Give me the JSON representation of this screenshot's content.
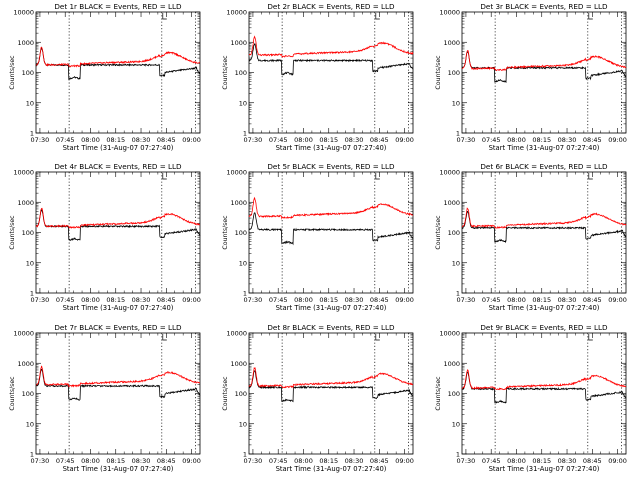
{
  "figure": {
    "background": "#ffffff",
    "events_color": "#000000",
    "lld_color": "#ff0000"
  },
  "chart_data": [
    {
      "type": "line",
      "title": "Det 1r BLACK = Events, RED = LLD",
      "xlabel": "Start Time (31-Aug-07 07:27:40)",
      "ylabel": "Counts/sec",
      "y_scale": "log",
      "ylim": [
        1,
        10000
      ],
      "x_ticks": [
        "07:30",
        "07:45",
        "08:00",
        "08:15",
        "08:30",
        "08:45",
        "09:00"
      ],
      "y_ticks": [
        "1",
        "10",
        "100",
        "1000",
        "10000"
      ],
      "x_range_min": [
        -2.33,
        95
      ],
      "vlines_min": [
        17.33,
        72.33,
        92.33
      ],
      "series": [
        {
          "color": "#000000",
          "profile": "black",
          "level": 1.0
        },
        {
          "color": "#ff0000",
          "profile": "red",
          "level": 1.0
        }
      ]
    },
    {
      "type": "line",
      "title": "Det 2r BLACK = Events, RED = LLD",
      "xlabel": "Start Time (31-Aug-07 07:27:40)",
      "ylabel": "Counts/sec",
      "y_scale": "log",
      "ylim": [
        1,
        10000
      ],
      "x_ticks": [
        "07:30",
        "07:45",
        "08:00",
        "08:15",
        "08:30",
        "08:45",
        "09:00"
      ],
      "y_ticks": [
        "1",
        "10",
        "100",
        "1000",
        "10000"
      ],
      "x_range_min": [
        -2.33,
        95
      ],
      "vlines_min": [
        17.33,
        72.33,
        92.33
      ],
      "series": [
        {
          "color": "#000000",
          "profile": "black",
          "level": 1.4
        },
        {
          "color": "#ff0000",
          "profile": "red",
          "level": 2.1
        }
      ]
    },
    {
      "type": "line",
      "title": "Det 3r BLACK = Events, RED = LLD",
      "xlabel": "Start Time (31-Aug-07 07:27:40)",
      "ylabel": "Counts/sec",
      "y_scale": "log",
      "ylim": [
        1,
        10000
      ],
      "x_ticks": [
        "07:30",
        "07:45",
        "08:00",
        "08:15",
        "08:30",
        "08:45",
        "09:00"
      ],
      "y_ticks": [
        "1",
        "10",
        "100",
        "1000",
        "10000"
      ],
      "x_range_min": [
        -2.33,
        95
      ],
      "vlines_min": [
        17.33,
        72.33,
        92.33
      ],
      "series": [
        {
          "color": "#000000",
          "profile": "black",
          "level": 0.8
        },
        {
          "color": "#ff0000",
          "profile": "red",
          "level": 0.75
        }
      ]
    },
    {
      "type": "line",
      "title": "Det 4r BLACK = Events, RED = LLD",
      "xlabel": "Start Time (31-Aug-07 07:27:40)",
      "ylabel": "Counts/sec",
      "y_scale": "log",
      "ylim": [
        1,
        10000
      ],
      "x_ticks": [
        "07:30",
        "07:45",
        "08:00",
        "08:15",
        "08:30",
        "08:45",
        "09:00"
      ],
      "y_ticks": [
        "1",
        "10",
        "100",
        "1000",
        "10000"
      ],
      "x_range_min": [
        -2.33,
        95
      ],
      "vlines_min": [
        17.33,
        72.33,
        92.33
      ],
      "series": [
        {
          "color": "#000000",
          "profile": "black",
          "level": 0.9
        },
        {
          "color": "#ff0000",
          "profile": "red",
          "level": 0.9
        }
      ]
    },
    {
      "type": "line",
      "title": "Det 5r BLACK = Events, RED = LLD",
      "xlabel": "Start Time (31-Aug-07 07:27:40)",
      "ylabel": "Counts/sec",
      "y_scale": "log",
      "ylim": [
        1,
        10000
      ],
      "x_ticks": [
        "07:30",
        "07:45",
        "08:00",
        "08:15",
        "08:30",
        "08:45",
        "09:00"
      ],
      "y_ticks": [
        "1",
        "10",
        "100",
        "1000",
        "10000"
      ],
      "x_range_min": [
        -2.33,
        95
      ],
      "vlines_min": [
        17.33,
        72.33,
        92.33
      ],
      "series": [
        {
          "color": "#000000",
          "profile": "black",
          "level": 0.7
        },
        {
          "color": "#ff0000",
          "profile": "red",
          "level": 1.9
        }
      ]
    },
    {
      "type": "line",
      "title": "Det 6r BLACK = Events, RED = LLD",
      "xlabel": "Start Time (31-Aug-07 07:27:40)",
      "ylabel": "Counts/sec",
      "y_scale": "log",
      "ylim": [
        1,
        10000
      ],
      "x_ticks": [
        "07:30",
        "07:45",
        "08:00",
        "08:15",
        "08:30",
        "08:45",
        "09:00"
      ],
      "y_ticks": [
        "1",
        "10",
        "100",
        "1000",
        "10000"
      ],
      "x_range_min": [
        -2.33,
        95
      ],
      "vlines_min": [
        17.33,
        72.33,
        92.33
      ],
      "series": [
        {
          "color": "#000000",
          "profile": "black",
          "level": 0.8
        },
        {
          "color": "#ff0000",
          "profile": "red",
          "level": 0.9
        }
      ]
    },
    {
      "type": "line",
      "title": "Det 7r BLACK = Events, RED = LLD",
      "xlabel": "Start Time (31-Aug-07 07:27:40)",
      "ylabel": "Counts/sec",
      "y_scale": "log",
      "ylim": [
        1,
        10000
      ],
      "x_ticks": [
        "07:30",
        "07:45",
        "08:00",
        "08:15",
        "08:30",
        "08:45",
        "09:00"
      ],
      "y_ticks": [
        "1",
        "10",
        "100",
        "1000",
        "10000"
      ],
      "x_range_min": [
        -2.33,
        95
      ],
      "vlines_min": [
        17.33,
        72.33,
        92.33
      ],
      "series": [
        {
          "color": "#000000",
          "profile": "black",
          "level": 1.0
        },
        {
          "color": "#ff0000",
          "profile": "red",
          "level": 1.1
        }
      ]
    },
    {
      "type": "line",
      "title": "Det 8r BLACK = Events, RED = LLD",
      "xlabel": "Start Time (31-Aug-07 07:27:40)",
      "ylabel": "Counts/sec",
      "y_scale": "log",
      "ylim": [
        1,
        10000
      ],
      "x_ticks": [
        "07:30",
        "07:45",
        "08:00",
        "08:15",
        "08:30",
        "08:45",
        "09:00"
      ],
      "y_ticks": [
        "1",
        "10",
        "100",
        "1000",
        "10000"
      ],
      "x_range_min": [
        -2.33,
        95
      ],
      "vlines_min": [
        17.33,
        72.33,
        92.33
      ],
      "series": [
        {
          "color": "#000000",
          "profile": "black",
          "level": 0.9
        },
        {
          "color": "#ff0000",
          "profile": "red",
          "level": 1.0
        }
      ]
    },
    {
      "type": "line",
      "title": "Det 9r BLACK = Events, RED = LLD",
      "xlabel": "Start Time (31-Aug-07 07:27:40)",
      "ylabel": "Counts/sec",
      "y_scale": "log",
      "ylim": [
        1,
        10000
      ],
      "x_ticks": [
        "07:30",
        "07:45",
        "08:00",
        "08:15",
        "08:30",
        "08:45",
        "09:00"
      ],
      "y_ticks": [
        "1",
        "10",
        "100",
        "1000",
        "10000"
      ],
      "x_range_min": [
        -2.33,
        95
      ],
      "vlines_min": [
        17.33,
        72.33,
        92.33
      ],
      "series": [
        {
          "color": "#000000",
          "profile": "black",
          "level": 0.8
        },
        {
          "color": "#ff0000",
          "profile": "red",
          "level": 0.85
        }
      ]
    }
  ]
}
